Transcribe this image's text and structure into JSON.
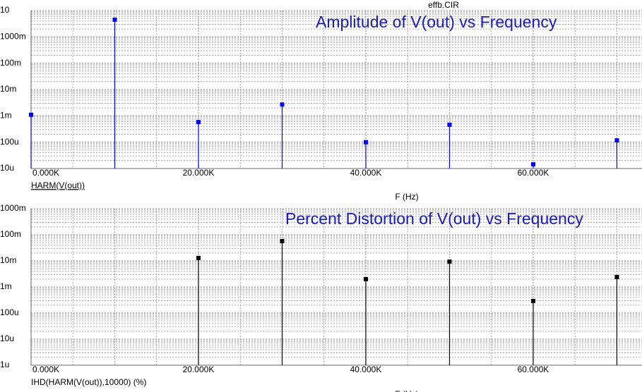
{
  "header": "effb.CIR",
  "chart_data": [
    {
      "type": "stem",
      "title": "Amplitude of V(out) vs Frequency",
      "xlabel": "F (Hz)",
      "x": [
        0,
        10000,
        20000,
        30000,
        40000,
        50000,
        60000,
        70000
      ],
      "series": [
        {
          "name": "HARM(V(out))",
          "color": "#0000ff",
          "values": [
            0.0011,
            4.5,
            0.00058,
            0.0027,
            0.0001,
            0.00046,
            1.44e-05,
            0.000117
          ]
        }
      ],
      "xlim": [
        0,
        73000
      ],
      "xticks": [
        {
          "value": 0,
          "label": "0.000K"
        },
        {
          "value": 20000,
          "label": "20.000K"
        },
        {
          "value": 40000,
          "label": "40.000K"
        },
        {
          "value": 60000,
          "label": "60.000K"
        }
      ],
      "ylim": [
        1e-05,
        10
      ],
      "ylog": true,
      "yticks": [
        {
          "value": 1e-05,
          "label": "10u"
        },
        {
          "value": 0.0001,
          "label": "100u"
        },
        {
          "value": 0.001,
          "label": "1m"
        },
        {
          "value": 0.01,
          "label": "10m"
        },
        {
          "value": 0.1,
          "label": "100m"
        },
        {
          "value": 1,
          "label": "1000m"
        },
        10
      ],
      "grid": true
    },
    {
      "type": "stem",
      "title": "Percent Distortion of V(out) vs Frequency",
      "xlabel": "F (Hz)",
      "x": [
        20000,
        30000,
        40000,
        50000,
        60000,
        70000
      ],
      "series": [
        {
          "name": "IHD(HARM(V(out)),10000) (%)",
          "color": "#000000",
          "values": [
            0.0129,
            0.057,
            0.002,
            0.0093,
            0.00029,
            0.0024
          ]
        }
      ],
      "xlim": [
        0,
        73000
      ],
      "xticks": [
        {
          "value": 0,
          "label": "0.000K"
        },
        {
          "value": 20000,
          "label": "20.000K"
        },
        {
          "value": 40000,
          "label": "40.000K"
        },
        {
          "value": 60000,
          "label": "60.000K"
        }
      ],
      "ylim": [
        1e-06,
        1
      ],
      "ylog": true,
      "yticks": [
        {
          "value": 1e-06,
          "label": "1u"
        },
        {
          "value": 1e-05,
          "label": "10u"
        },
        {
          "value": 0.0001,
          "label": "100u"
        },
        {
          "value": 0.001,
          "label": "1m"
        },
        {
          "value": 0.01,
          "label": "10m"
        },
        {
          "value": 0.1,
          "label": "100m"
        },
        {
          "value": 1,
          "label": "1000m"
        }
      ],
      "grid": true
    }
  ]
}
